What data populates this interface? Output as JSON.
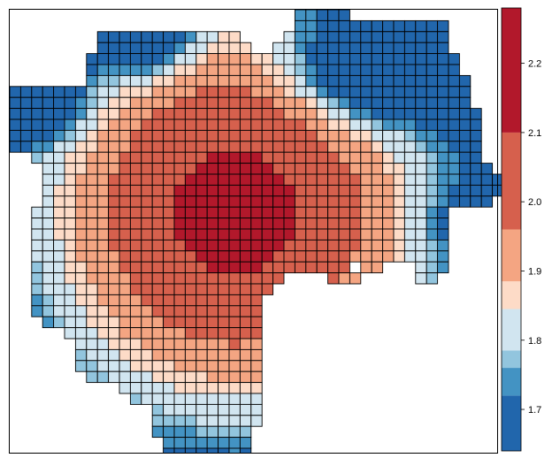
{
  "chart_data": {
    "type": "heatmap",
    "title": "",
    "xlabel": "",
    "ylabel": "",
    "grid_cols": 46,
    "grid_rows": 42,
    "colorbar": {
      "ticks": [
        1.7,
        1.8,
        1.9,
        2.0,
        2.1,
        2.2
      ],
      "tick_labels": [
        "1.7",
        "1.8",
        "1.9",
        "2.0",
        "2.1",
        "2.2"
      ],
      "range": [
        1.64,
        2.28
      ],
      "bins": [
        {
          "min": 1.64,
          "max": 1.72,
          "color": "#2166ac"
        },
        {
          "min": 1.72,
          "max": 1.76,
          "color": "#4393c3"
        },
        {
          "min": 1.76,
          "max": 1.785,
          "color": "#92c5de"
        },
        {
          "min": 1.785,
          "max": 1.845,
          "color": "#d1e5f0"
        },
        {
          "min": 1.845,
          "max": 1.885,
          "color": "#fddbc7"
        },
        {
          "min": 1.885,
          "max": 1.96,
          "color": "#f4a582"
        },
        {
          "min": 1.96,
          "max": 2.1,
          "color": "#d6604d"
        },
        {
          "min": 2.1,
          "max": 2.28,
          "color": "#b2182b"
        }
      ]
    },
    "center_col": 20,
    "center_row": 18,
    "peak_value": 2.2,
    "edge_value": 1.72,
    "radius_x": 21,
    "radius_y": 22,
    "blue_lobes": [
      {
        "col": 11,
        "row": 1,
        "sx": 4.5,
        "sy": 4,
        "amp": 0.36
      },
      {
        "col": 2,
        "row": 8,
        "sx": 4,
        "sy": 3,
        "amp": 0.26
      },
      {
        "col": 33,
        "row": 5,
        "sx": 7,
        "sy": 4.5,
        "amp": 0.34
      },
      {
        "col": 41,
        "row": 19,
        "sx": 3.5,
        "sy": 3,
        "amp": 0.1
      }
    ],
    "row_spans": [
      [
        [
          26,
          30
        ]
      ],
      [
        [
          26,
          31
        ],
        [
          32,
          34
        ],
        [
          35,
          39
        ]
      ],
      [
        [
          8,
          20
        ],
        [
          25,
          39
        ]
      ],
      [
        [
          8,
          21
        ],
        [
          24,
          39
        ]
      ],
      [
        [
          7,
          40
        ]
      ],
      [
        [
          7,
          40
        ]
      ],
      [
        [
          7,
          41
        ]
      ],
      [
        [
          0,
          41
        ]
      ],
      [
        [
          0,
          41
        ]
      ],
      [
        [
          0,
          42
        ]
      ],
      [
        [
          0,
          42
        ]
      ],
      [
        [
          0,
          42
        ]
      ],
      [
        [
          0,
          42
        ]
      ],
      [
        [
          2,
          42
        ]
      ],
      [
        [
          3,
          43
        ]
      ],
      [
        [
          3,
          44
        ]
      ],
      [
        [
          3,
          44
        ]
      ],
      [
        [
          3,
          43
        ]
      ],
      [
        [
          2,
          39
        ]
      ],
      [
        [
          2,
          39
        ]
      ],
      [
        [
          2,
          39
        ]
      ],
      [
        [
          2,
          39
        ]
      ],
      [
        [
          2,
          39
        ]
      ],
      [
        [
          2,
          30
        ],
        [
          32,
          33
        ],
        [
          37,
          39
        ]
      ],
      [
        [
          2,
          24
        ],
        [
          29,
          31
        ],
        [
          37,
          38
        ]
      ],
      [
        [
          2,
          23
        ]
      ],
      [
        [
          2,
          22
        ]
      ],
      [
        [
          2,
          22
        ]
      ],
      [
        [
          3,
          22
        ]
      ],
      [
        [
          5,
          22
        ]
      ],
      [
        [
          6,
          22
        ]
      ],
      [
        [
          6,
          22
        ]
      ],
      [
        [
          6,
          22
        ]
      ],
      [
        [
          7,
          22
        ]
      ],
      [
        [
          10,
          22
        ]
      ],
      [
        [
          11,
          22
        ]
      ],
      [
        [
          13,
          22
        ]
      ],
      [
        [
          13,
          22
        ]
      ],
      [
        [
          13,
          21
        ]
      ],
      [
        [
          14,
          21
        ]
      ],
      [
        [
          14,
          21
        ]
      ],
      [
        [
          17,
          21
        ]
      ]
    ]
  }
}
